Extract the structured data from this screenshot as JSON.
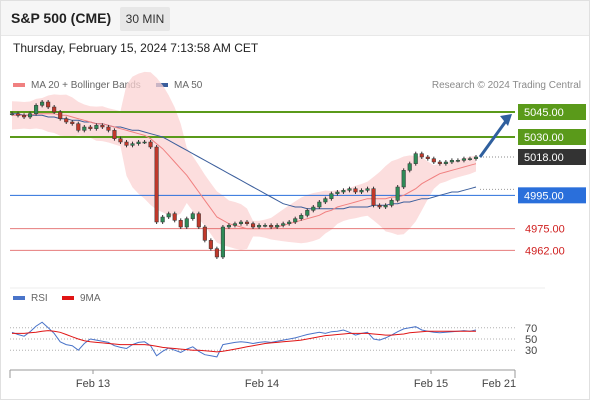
{
  "header": {
    "symbol": "S&P 500 (CME)",
    "timeframe": "30 MIN",
    "datetime": "Thursday, February 15, 2024 7:13:58 AM CET"
  },
  "legend": {
    "ma20_label": "MA 20 + Bollinger Bands",
    "ma50_label": "MA 50",
    "copyright": "Research © 2024 Trading Central",
    "rsi_label": "RSI",
    "rsi_ma_label": "9MA"
  },
  "colors": {
    "ma20": "#f08080",
    "ma50": "#3b5e9c",
    "band": "#fbd3d3",
    "resistance": "#5a9a1a",
    "pivot": "#2a6fdb",
    "support": "#e05a5a",
    "arrow": "#2f5f9e",
    "rsi": "#4a74c9",
    "rsi_ma": "#e01515",
    "last": "#333333"
  },
  "chart_data": [
    {
      "type": "line",
      "ylim": [
        4943,
        5054
      ],
      "x_labels": [
        "Feb 13",
        "Feb 14",
        "Feb 15",
        "Feb 21"
      ],
      "price_levels": [
        {
          "label": "5045.00",
          "value": 5045,
          "kind": "resistance"
        },
        {
          "label": "5030.00",
          "value": 5030,
          "kind": "resistance"
        },
        {
          "label": "5018.00",
          "value": 5018,
          "kind": "last"
        },
        {
          "label": "4995.00",
          "value": 4995,
          "kind": "pivot"
        },
        {
          "label": "4975.00",
          "value": 4975,
          "kind": "support"
        },
        {
          "label": "4962.00",
          "value": 4962,
          "kind": "support"
        }
      ],
      "series": [
        {
          "name": "Price",
          "values": [
            5044,
            5043,
            5042,
            5044,
            5049,
            5051,
            5048,
            5045,
            5041,
            5039,
            5038,
            5034,
            5036,
            5035,
            5037,
            5036,
            5034,
            5029,
            5027,
            5025,
            5026,
            5027,
            5027,
            5024,
            4979,
            4982,
            4984,
            4980,
            4976,
            4981,
            4984,
            4976,
            4968,
            4963,
            4958,
            4976,
            4977,
            4978,
            4979,
            4978,
            4976,
            4977,
            4977,
            4976,
            4977,
            4978,
            4979,
            4981,
            4983,
            4986,
            4988,
            4991,
            4993,
            4996,
            4997,
            4998,
            4999,
            4997,
            4998,
            4999,
            4989,
            4988,
            4989,
            4992,
            5000,
            5010,
            5014,
            5020,
            5018,
            5017,
            5015,
            5014,
            5015,
            5016,
            5016,
            5017,
            5017,
            5018
          ]
        },
        {
          "name": "MA 20",
          "values": [
            5043,
            5043,
            5043,
            5043,
            5044,
            5044,
            5044,
            5044,
            5043,
            5043,
            5042,
            5041,
            5040,
            5039,
            5038,
            5038,
            5037,
            5036,
            5035,
            5034,
            5033,
            5032,
            5031,
            5029,
            5026,
            5023,
            5019,
            5015,
            5011,
            5007,
            5002,
            4997,
            4992,
            4987,
            4982,
            4980,
            4978,
            4977,
            4976,
            4975,
            4975,
            4975,
            4975,
            4975,
            4976,
            4977,
            4978,
            4979,
            4980,
            4981,
            4982,
            4983,
            4985,
            4986,
            4988,
            4989,
            4990,
            4991,
            4992,
            4993,
            4993,
            4993,
            4993,
            4994,
            4994,
            4995,
            4997,
            4999,
            5002,
            5004,
            5006,
            5008,
            5009,
            5010,
            5011,
            5012,
            5013,
            5014
          ]
        },
        {
          "name": "MA 50",
          "values": [
            5044,
            5044,
            5043,
            5043,
            5043,
            5043,
            5042,
            5042,
            5041,
            5041,
            5040,
            5040,
            5039,
            5039,
            5038,
            5038,
            5037,
            5036,
            5036,
            5035,
            5034,
            5034,
            5033,
            5032,
            5031,
            5030,
            5028,
            5026,
            5024,
            5022,
            5020,
            5018,
            5016,
            5014,
            5012,
            5010,
            5008,
            5006,
            5004,
            5002,
            5000,
            4998,
            4996,
            4994,
            4992,
            4990,
            4989,
            4988,
            4988,
            4987,
            4987,
            4987,
            4987,
            4987,
            4987,
            4987,
            4988,
            4988,
            4988,
            4988,
            4989,
            4989,
            4989,
            4990,
            4990,
            4991,
            4991,
            4992,
            4993,
            4993,
            4994,
            4995,
            4996,
            4997,
            4997,
            4998,
            4999,
            5000
          ]
        }
      ]
    },
    {
      "type": "line",
      "ylim": [
        0,
        100
      ],
      "y_ticks": [
        "70",
        "50",
        "30"
      ],
      "series": [
        {
          "name": "RSI",
          "values": [
            62,
            58,
            55,
            63,
            73,
            80,
            70,
            60,
            45,
            40,
            38,
            30,
            42,
            50,
            48,
            46,
            44,
            38,
            35,
            33,
            40,
            44,
            45,
            38,
            20,
            28,
            34,
            30,
            26,
            32,
            36,
            28,
            22,
            20,
            18,
            40,
            42,
            44,
            45,
            44,
            42,
            44,
            45,
            44,
            46,
            48,
            50,
            52,
            55,
            58,
            60,
            62,
            60,
            63,
            64,
            66,
            62,
            57,
            60,
            62,
            50,
            48,
            52,
            57,
            63,
            68,
            70,
            72,
            66,
            64,
            62,
            61,
            62,
            63,
            64,
            65,
            64,
            66
          ]
        },
        {
          "name": "9MA",
          "values": [
            60,
            60,
            60,
            61,
            62,
            64,
            65,
            64,
            62,
            58,
            54,
            50,
            47,
            45,
            44,
            43,
            42,
            41,
            40,
            40,
            40,
            40,
            40,
            39,
            37,
            35,
            34,
            33,
            32,
            31,
            30,
            30,
            29,
            28,
            27,
            28,
            30,
            32,
            34,
            36,
            38,
            40,
            42,
            43,
            44,
            45,
            46,
            47,
            48,
            50,
            52,
            54,
            56,
            57,
            58,
            59,
            60,
            60,
            60,
            60,
            59,
            58,
            57,
            57,
            58,
            59,
            61,
            62,
            63,
            64,
            64,
            64,
            64,
            64,
            64,
            64,
            64,
            64
          ]
        }
      ]
    }
  ]
}
